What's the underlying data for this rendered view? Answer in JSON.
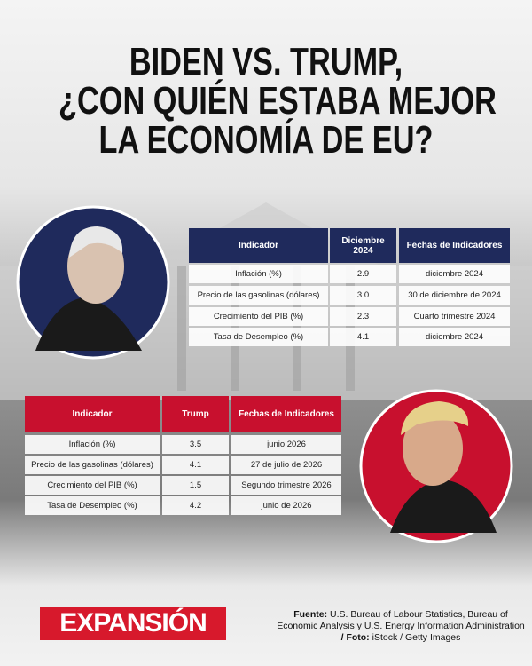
{
  "title": [
    "BIDEN VS. TRUMP,",
    "¿CON QUIÉN ESTABA MEJOR",
    "LA ECONOMÍA DE EU?"
  ],
  "biden_table": {
    "header": [
      "Indicador",
      "Diciembre 2024",
      "Fechas de Indicadores"
    ],
    "rows": [
      [
        "Inflación (%)",
        "2.9",
        "diciembre 2024"
      ],
      [
        "Precio de las gasolinas (dólares)",
        "3.0",
        "30 de diciembre de 2024"
      ],
      [
        "Crecimiento del PIB (%)",
        "2.3",
        "Cuarto trimestre 2024"
      ],
      [
        "Tasa de Desempleo (%)",
        "4.1",
        "diciembre 2024"
      ]
    ]
  },
  "trump_table": {
    "header": [
      "Indicador",
      "Trump",
      "Fechas de Indicadores"
    ],
    "rows": [
      [
        "Inflación (%)",
        "3.5",
        "junio 2026"
      ],
      [
        "Precio de las gasolinas (dólares)",
        "4.1",
        "27 de julio de 2026"
      ],
      [
        "Crecimiento del PIB (%)",
        "1.5",
        "Segundo trimestre 2026"
      ],
      [
        "Tasa de Desempleo (%)",
        "4.2",
        "junio de 2026"
      ]
    ]
  },
  "logo": "EXPANSIÓN",
  "footer": {
    "source_label": "Fuente:",
    "source": "U.S. Bureau of Labour Statistics, Bureau of Economic Analysis y U.S. Energy Information Administration",
    "separator": "/",
    "photo_label": "Foto:",
    "photo": "iStock / Getty Images"
  }
}
